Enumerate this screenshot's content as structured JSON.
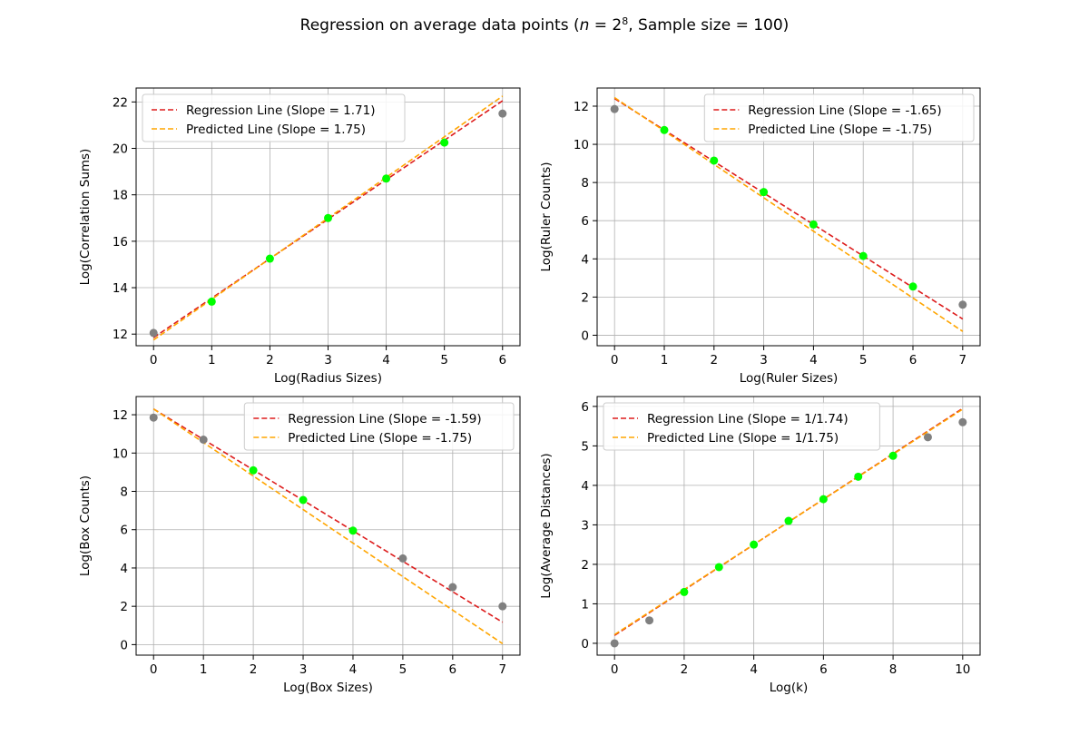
{
  "figure": {
    "title_parts": {
      "prefix": "Regression on average data points (",
      "n_symbol": "n",
      "equals": " = 2",
      "exponent": "8",
      "suffix": ", Sample size = 100)"
    }
  },
  "colors": {
    "regression": "#dd1c1c",
    "predicted": "#ffa500",
    "used_point": "#00ff00",
    "excluded_point": "#808080",
    "grid": "#b0b0b0"
  },
  "chart_data": [
    {
      "type": "scatter",
      "xlabel": "Log(Radius Sizes)",
      "ylabel": "Log(Correlation Sums)",
      "xlim": [
        -0.3,
        6.3
      ],
      "ylim": [
        11.5,
        22.6
      ],
      "xticks": [
        0,
        1,
        2,
        3,
        4,
        5,
        6
      ],
      "yticks": [
        12,
        14,
        16,
        18,
        20,
        22
      ],
      "grid": true,
      "legend_position": "upper-left",
      "points": {
        "x": [
          0,
          1,
          2,
          3,
          4,
          5,
          6
        ],
        "y": [
          12.05,
          13.4,
          15.25,
          17.0,
          18.7,
          20.25,
          21.5
        ],
        "fit_used": [
          false,
          true,
          true,
          true,
          true,
          true,
          false
        ]
      },
      "lines": [
        {
          "name": "Regression Line (Slope = 1.71)",
          "role": "regression",
          "x": [
            0,
            6
          ],
          "y": [
            11.85,
            22.05
          ]
        },
        {
          "name": "Predicted Line (Slope = 1.75)",
          "role": "predicted",
          "x": [
            0,
            6
          ],
          "y": [
            11.75,
            22.25
          ]
        }
      ]
    },
    {
      "type": "scatter",
      "xlabel": "Log(Ruler Sizes)",
      "ylabel": "Log(Ruler Counts)",
      "xlim": [
        -0.35,
        7.35
      ],
      "ylim": [
        -0.55,
        12.95
      ],
      "xticks": [
        0,
        1,
        2,
        3,
        4,
        5,
        6,
        7
      ],
      "yticks": [
        0,
        2,
        4,
        6,
        8,
        10,
        12
      ],
      "grid": true,
      "legend_position": "upper-right",
      "points": {
        "x": [
          0,
          1,
          2,
          3,
          4,
          5,
          6,
          7
        ],
        "y": [
          11.85,
          10.75,
          9.15,
          7.5,
          5.8,
          4.15,
          2.55,
          1.6
        ],
        "fit_used": [
          false,
          true,
          true,
          true,
          true,
          true,
          true,
          false
        ]
      },
      "lines": [
        {
          "name": "Regression Line (Slope = -1.65)",
          "role": "regression",
          "x": [
            0,
            7
          ],
          "y": [
            12.4,
            0.85
          ]
        },
        {
          "name": "Predicted Line (Slope = -1.75)",
          "role": "predicted",
          "x": [
            0,
            7
          ],
          "y": [
            12.45,
            0.2
          ]
        }
      ]
    },
    {
      "type": "scatter",
      "xlabel": "Log(Box Sizes)",
      "ylabel": "Log(Box Counts)",
      "xlim": [
        -0.35,
        7.35
      ],
      "ylim": [
        -0.55,
        12.95
      ],
      "xticks": [
        0,
        1,
        2,
        3,
        4,
        5,
        6,
        7
      ],
      "yticks": [
        0,
        2,
        4,
        6,
        8,
        10,
        12
      ],
      "grid": true,
      "legend_position": "upper-right",
      "points": {
        "x": [
          0,
          1,
          2,
          3,
          4,
          5,
          6,
          7
        ],
        "y": [
          11.85,
          10.7,
          9.1,
          7.55,
          5.95,
          4.5,
          3.0,
          2.0
        ],
        "fit_used": [
          false,
          false,
          true,
          true,
          true,
          false,
          false,
          false
        ]
      },
      "lines": [
        {
          "name": "Regression Line (Slope = -1.59)",
          "role": "regression",
          "x": [
            0,
            7
          ],
          "y": [
            12.3,
            1.17
          ]
        },
        {
          "name": "Predicted Line (Slope = -1.75)",
          "role": "predicted",
          "x": [
            0,
            7
          ],
          "y": [
            12.3,
            0.05
          ]
        }
      ]
    },
    {
      "type": "scatter",
      "xlabel": "Log(k)",
      "ylabel": "Log(Average Distances)",
      "xlim": [
        -0.5,
        10.5
      ],
      "ylim": [
        -0.3,
        6.25
      ],
      "xticks": [
        0,
        2,
        4,
        6,
        8,
        10
      ],
      "yticks": [
        0,
        1,
        2,
        3,
        4,
        5,
        6
      ],
      "grid": true,
      "legend_position": "upper-left",
      "points": {
        "x": [
          0,
          1,
          2,
          3,
          4,
          5,
          6,
          7,
          8,
          9,
          10
        ],
        "y": [
          0.0,
          0.58,
          1.3,
          1.93,
          2.5,
          3.1,
          3.65,
          4.22,
          4.75,
          5.22,
          5.6
        ],
        "fit_used": [
          false,
          false,
          true,
          true,
          true,
          true,
          true,
          true,
          true,
          false,
          false
        ]
      },
      "lines": [
        {
          "name": "Regression Line (Slope = 1/1.74)",
          "role": "regression",
          "x": [
            0,
            10
          ],
          "y": [
            0.2,
            5.95
          ]
        },
        {
          "name": "Predicted Line (Slope = 1/1.75)",
          "role": "predicted",
          "x": [
            0,
            10
          ],
          "y": [
            0.22,
            5.93
          ]
        }
      ]
    }
  ]
}
